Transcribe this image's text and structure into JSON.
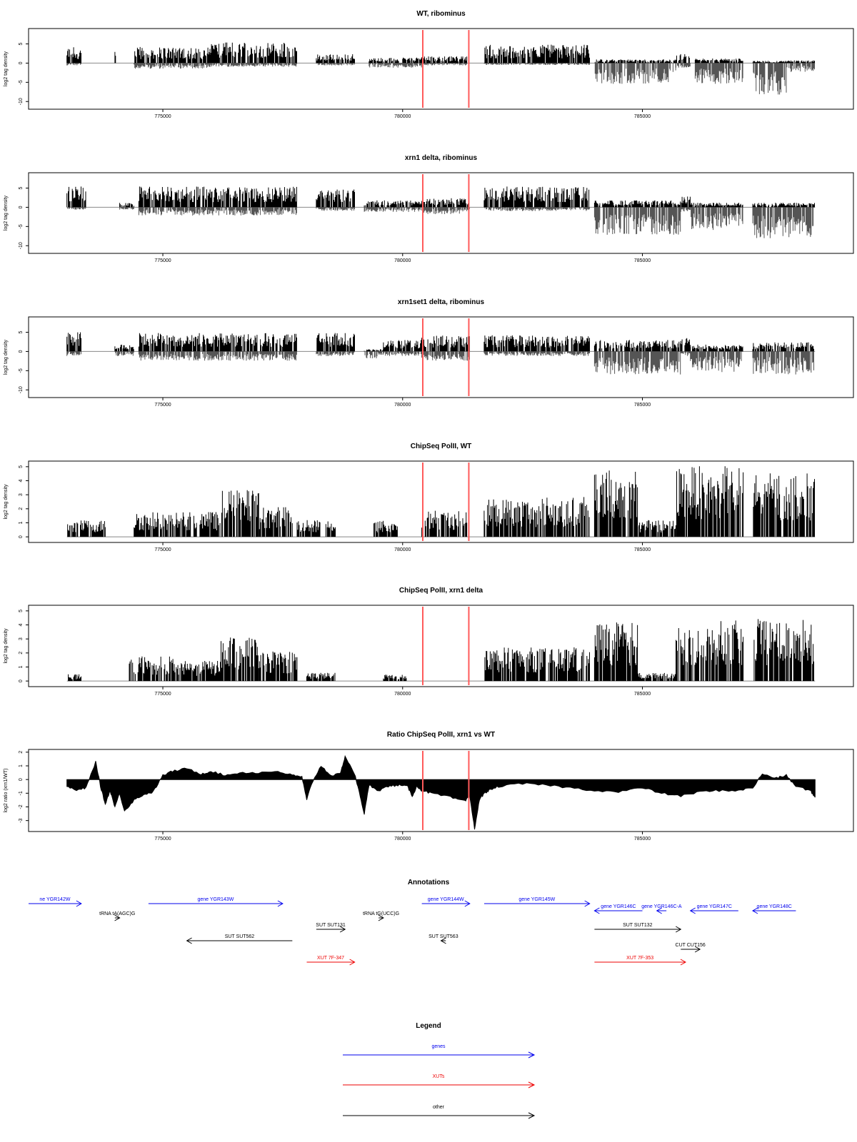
{
  "chart_data": [
    {
      "type": "bar",
      "id": "wt_ribominus",
      "title": "WT, ribominus",
      "ylabel": "log2 tag density",
      "xlim": [
        772200,
        789400
      ],
      "ylim": [
        -12,
        9
      ],
      "yticks": [
        -10,
        -5,
        0,
        5
      ],
      "xticks": [
        775000,
        780000,
        785000
      ],
      "vlines": [
        780420,
        781380
      ],
      "regions": [
        {
          "x0": 773000,
          "x1": 773300,
          "pos": 3.5,
          "neg": 0.5
        },
        {
          "x0": 774000,
          "x1": 774020,
          "pos": 2.5,
          "neg": 0
        },
        {
          "x0": 774400,
          "x1": 776000,
          "pos": 3.5,
          "neg": 1.2
        },
        {
          "x0": 776000,
          "x1": 777800,
          "pos": 4.5,
          "neg": 0.8
        },
        {
          "x0": 778200,
          "x1": 779000,
          "pos": 2.0,
          "neg": 0.5
        },
        {
          "x0": 779300,
          "x1": 780400,
          "pos": 1.2,
          "neg": 1.0
        },
        {
          "x0": 780400,
          "x1": 781350,
          "pos": 1.5,
          "neg": 0.5
        },
        {
          "x0": 781700,
          "x1": 783900,
          "pos": 4.0,
          "neg": 0.4
        },
        {
          "x0": 784000,
          "x1": 785700,
          "pos": 0.8,
          "neg": 4.5
        },
        {
          "x0": 785700,
          "x1": 786000,
          "pos": 2.0,
          "neg": 1.0
        },
        {
          "x0": 786100,
          "x1": 787100,
          "pos": 1.0,
          "neg": 4.5
        },
        {
          "x0": 787300,
          "x1": 788000,
          "pos": 0.5,
          "neg": 7.0
        },
        {
          "x0": 788000,
          "x1": 788600,
          "pos": 0.6,
          "neg": 2.0
        }
      ]
    },
    {
      "type": "bar",
      "id": "xrn1_ribominus",
      "title": "xrn1 delta, ribominus",
      "ylabel": "log2 tag density",
      "xlim": [
        772200,
        789400
      ],
      "ylim": [
        -12,
        9
      ],
      "yticks": [
        -10,
        -5,
        0,
        5
      ],
      "xticks": [
        775000,
        780000,
        785000
      ],
      "vlines": [
        780420,
        781380
      ],
      "regions": [
        {
          "x0": 773000,
          "x1": 773400,
          "pos": 4.5,
          "neg": 0.5
        },
        {
          "x0": 774100,
          "x1": 774400,
          "pos": 1.0,
          "neg": 0.5
        },
        {
          "x0": 774500,
          "x1": 777800,
          "pos": 4.5,
          "neg": 1.8
        },
        {
          "x0": 778200,
          "x1": 779000,
          "pos": 4.0,
          "neg": 0.8
        },
        {
          "x0": 779200,
          "x1": 780400,
          "pos": 1.5,
          "neg": 1.0
        },
        {
          "x0": 780400,
          "x1": 781400,
          "pos": 2.0,
          "neg": 1.5
        },
        {
          "x0": 781700,
          "x1": 783900,
          "pos": 4.5,
          "neg": 0.8
        },
        {
          "x0": 784000,
          "x1": 785800,
          "pos": 1.5,
          "neg": 6.0
        },
        {
          "x0": 785800,
          "x1": 786000,
          "pos": 2.5,
          "neg": 1.0
        },
        {
          "x0": 786000,
          "x1": 787100,
          "pos": 1.0,
          "neg": 5.0
        },
        {
          "x0": 787300,
          "x1": 788600,
          "pos": 1.0,
          "neg": 7.0
        }
      ]
    },
    {
      "type": "bar",
      "id": "xrn1set1_ribominus",
      "title": "xrn1set1 delta, ribominus",
      "ylabel": "log2 tag density",
      "xlim": [
        772200,
        789400
      ],
      "ylim": [
        -12,
        9
      ],
      "yticks": [
        -10,
        -5,
        0,
        5
      ],
      "xticks": [
        775000,
        780000,
        785000
      ],
      "vlines": [
        780420,
        781380
      ],
      "regions": [
        {
          "x0": 773000,
          "x1": 773300,
          "pos": 4.5,
          "neg": 1.0
        },
        {
          "x0": 774000,
          "x1": 774400,
          "pos": 1.5,
          "neg": 1.0
        },
        {
          "x0": 774500,
          "x1": 777800,
          "pos": 4.0,
          "neg": 2.0
        },
        {
          "x0": 778200,
          "x1": 779000,
          "pos": 4.0,
          "neg": 1.0
        },
        {
          "x0": 779200,
          "x1": 779600,
          "pos": 0.5,
          "neg": 1.5
        },
        {
          "x0": 779600,
          "x1": 780400,
          "pos": 2.5,
          "neg": 1.0
        },
        {
          "x0": 780400,
          "x1": 781400,
          "pos": 3.5,
          "neg": 2.0
        },
        {
          "x0": 781700,
          "x1": 783900,
          "pos": 3.5,
          "neg": 1.0
        },
        {
          "x0": 784000,
          "x1": 785800,
          "pos": 2.5,
          "neg": 5.0
        },
        {
          "x0": 785800,
          "x1": 786000,
          "pos": 3.0,
          "neg": 1.0
        },
        {
          "x0": 786000,
          "x1": 787100,
          "pos": 1.5,
          "neg": 4.5
        },
        {
          "x0": 787300,
          "x1": 788600,
          "pos": 2.0,
          "neg": 5.0
        }
      ]
    },
    {
      "type": "bar",
      "id": "chipseq_wt",
      "title": "ChipSeq PolII, WT",
      "ylabel": "log2 tag density",
      "xlim": [
        772200,
        789400
      ],
      "ylim": [
        -0.4,
        5.4
      ],
      "yticks": [
        0,
        1,
        2,
        3,
        4,
        5
      ],
      "xticks": [
        775000,
        780000,
        785000
      ],
      "vlines": [
        780420,
        781380
      ],
      "regions": [
        {
          "x0": 773000,
          "x1": 773800,
          "pos": 1.0,
          "neg": 0
        },
        {
          "x0": 774400,
          "x1": 776200,
          "pos": 1.5,
          "neg": 0
        },
        {
          "x0": 776200,
          "x1": 777000,
          "pos": 2.8,
          "neg": 0
        },
        {
          "x0": 777000,
          "x1": 777700,
          "pos": 1.8,
          "neg": 0
        },
        {
          "x0": 777800,
          "x1": 778300,
          "pos": 1.0,
          "neg": 0
        },
        {
          "x0": 778400,
          "x1": 778600,
          "pos": 1.0,
          "neg": 0
        },
        {
          "x0": 779400,
          "x1": 779900,
          "pos": 1.0,
          "neg": 0
        },
        {
          "x0": 780400,
          "x1": 781350,
          "pos": 1.6,
          "neg": 0
        },
        {
          "x0": 781700,
          "x1": 782800,
          "pos": 2.3,
          "neg": 0
        },
        {
          "x0": 782800,
          "x1": 783900,
          "pos": 2.4,
          "neg": 0
        },
        {
          "x0": 784000,
          "x1": 784900,
          "pos": 4.0,
          "neg": 0
        },
        {
          "x0": 784900,
          "x1": 785700,
          "pos": 1.0,
          "neg": 0
        },
        {
          "x0": 785700,
          "x1": 787100,
          "pos": 4.2,
          "neg": 0
        },
        {
          "x0": 787300,
          "x1": 788600,
          "pos": 3.8,
          "neg": 0
        }
      ]
    },
    {
      "type": "bar",
      "id": "chipseq_xrn1",
      "title": "ChipSeq PolII, xrn1 delta",
      "ylabel": "log2 tag density",
      "xlim": [
        772200,
        789400
      ],
      "ylim": [
        -0.4,
        5.4
      ],
      "yticks": [
        0,
        1,
        2,
        3,
        4,
        5
      ],
      "xticks": [
        775000,
        780000,
        785000
      ],
      "vlines": [
        780420,
        781380
      ],
      "regions": [
        {
          "x0": 773000,
          "x1": 773300,
          "pos": 0.4,
          "neg": 0
        },
        {
          "x0": 774300,
          "x1": 775300,
          "pos": 1.5,
          "neg": 0
        },
        {
          "x0": 775300,
          "x1": 776200,
          "pos": 1.2,
          "neg": 0
        },
        {
          "x0": 776200,
          "x1": 777000,
          "pos": 2.6,
          "neg": 0
        },
        {
          "x0": 777000,
          "x1": 777800,
          "pos": 1.8,
          "neg": 0
        },
        {
          "x0": 778000,
          "x1": 778600,
          "pos": 0.5,
          "neg": 0
        },
        {
          "x0": 779600,
          "x1": 780100,
          "pos": 0.4,
          "neg": 0
        },
        {
          "x0": 781700,
          "x1": 783100,
          "pos": 2.0,
          "neg": 0
        },
        {
          "x0": 783100,
          "x1": 783900,
          "pos": 2.0,
          "neg": 0
        },
        {
          "x0": 784000,
          "x1": 784900,
          "pos": 3.5,
          "neg": 0
        },
        {
          "x0": 784900,
          "x1": 785700,
          "pos": 0.5,
          "neg": 0
        },
        {
          "x0": 785700,
          "x1": 787100,
          "pos": 3.6,
          "neg": 0
        },
        {
          "x0": 787300,
          "x1": 788600,
          "pos": 3.7,
          "neg": 0
        }
      ]
    },
    {
      "type": "area",
      "id": "ratio",
      "title": "Ratio ChipSeq PolII, xrn1 vs WT",
      "ylabel": "log2 ratio (xrn1/WT)",
      "xlim": [
        772200,
        789400
      ],
      "ylim": [
        -3.8,
        2.2
      ],
      "yticks": [
        -3,
        -2,
        -1,
        0,
        1,
        2
      ],
      "xticks": [
        775000,
        780000,
        785000
      ],
      "vlines": [
        780420,
        781380
      ],
      "x": [
        773000,
        773200,
        773400,
        773600,
        773700,
        773800,
        773900,
        774000,
        774100,
        774200,
        774400,
        774600,
        774800,
        775000,
        775200,
        775500,
        775800,
        776000,
        776300,
        776600,
        777000,
        777400,
        777700,
        777900,
        778000,
        778100,
        778300,
        778500,
        778700,
        778800,
        779000,
        779100,
        779200,
        779300,
        779500,
        779700,
        779900,
        780100,
        780200,
        780300,
        780400,
        780600,
        781000,
        781300,
        781400,
        781500,
        781600,
        781700,
        781800,
        782000,
        782500,
        783000,
        783500,
        784000,
        784500,
        785000,
        785400,
        785800,
        786200,
        786600,
        787000,
        787300,
        787500,
        787800,
        788000,
        788200,
        788500,
        788600
      ],
      "y": [
        -0.5,
        -0.8,
        -0.6,
        1.3,
        -0.5,
        -1.8,
        -0.8,
        -2.0,
        -1.0,
        -2.3,
        -1.5,
        -1.1,
        -0.9,
        0.3,
        0.6,
        0.8,
        0.4,
        0.6,
        0.3,
        0.5,
        0.5,
        0.6,
        0.3,
        0.2,
        -1.5,
        -0.3,
        1.0,
        0.3,
        0.4,
        1.7,
        0.4,
        -1.0,
        -2.5,
        -0.4,
        -0.8,
        -0.5,
        -0.4,
        -0.5,
        -1.2,
        -0.5,
        -0.8,
        -1.0,
        -1.3,
        -1.6,
        -1.2,
        -3.6,
        -1.5,
        -1.0,
        -0.8,
        -0.5,
        -0.3,
        -0.4,
        -0.6,
        -0.8,
        -0.9,
        -0.6,
        -1.0,
        -1.2,
        -0.9,
        -0.8,
        -0.8,
        -0.6,
        0.4,
        0.1,
        0.3,
        -0.5,
        -0.8,
        -1.3
      ]
    }
  ],
  "annotations": {
    "title": "Annotations",
    "items": [
      {
        "label": "ne YGR142W",
        "color": "#0000ee",
        "x0": 772200,
        "x1": 773300,
        "row": 0,
        "dir": "right"
      },
      {
        "label": "gene YGR143W",
        "color": "#0000ee",
        "x0": 774700,
        "x1": 777500,
        "row": 0,
        "dir": "right"
      },
      {
        "label": "gene YGR144W",
        "color": "#0000ee",
        "x0": 780400,
        "x1": 781400,
        "row": 0,
        "dir": "right"
      },
      {
        "label": "gene YGR145W",
        "color": "#0000ee",
        "x0": 781700,
        "x1": 783900,
        "row": 0,
        "dir": "right"
      },
      {
        "label": "gene YGR146C",
        "color": "#0000ee",
        "x0": 784000,
        "x1": 785000,
        "row": 1,
        "dir": "left"
      },
      {
        "label": "gene YGR146C-A",
        "color": "#0000ee",
        "x0": 785300,
        "x1": 785500,
        "row": 1,
        "dir": "left"
      },
      {
        "label": "gene YGR147C",
        "color": "#0000ee",
        "x0": 786000,
        "x1": 787000,
        "row": 1,
        "dir": "left"
      },
      {
        "label": "gene YGR148C",
        "color": "#0000ee",
        "x0": 787300,
        "x1": 788200,
        "row": 1,
        "dir": "left"
      },
      {
        "label": "tRNA tA(AGC)G",
        "color": "#000000",
        "x0": 774000,
        "x1": 774100,
        "row": 2,
        "dir": "right"
      },
      {
        "label": "tRNA tG(UCC)G",
        "color": "#000000",
        "x0": 779500,
        "x1": 779600,
        "row": 2,
        "dir": "right"
      },
      {
        "label": "SUT SUT131",
        "color": "#000000",
        "x0": 778200,
        "x1": 778800,
        "row": 3,
        "dir": "right"
      },
      {
        "label": "SUT SUT132",
        "color": "#000000",
        "x0": 784000,
        "x1": 785800,
        "row": 3,
        "dir": "right"
      },
      {
        "label": "SUT SUT562",
        "color": "#000000",
        "x0": 775500,
        "x1": 777700,
        "row": 4,
        "dir": "left"
      },
      {
        "label": "SUT SUT563",
        "color": "#000000",
        "x0": 780800,
        "x1": 780900,
        "row": 4,
        "dir": "left"
      },
      {
        "label": "CUT CUT156",
        "color": "#000000",
        "x0": 785800,
        "x1": 786200,
        "row": 5,
        "dir": "right"
      },
      {
        "label": "XUT 7F-347",
        "color": "#ee0000",
        "x0": 778000,
        "x1": 779000,
        "row": 6,
        "dir": "right"
      },
      {
        "label": "XUT 7F-353",
        "color": "#ee0000",
        "x0": 784000,
        "x1": 785900,
        "row": 6,
        "dir": "right"
      }
    ]
  },
  "legend": {
    "title": "Legend",
    "items": [
      {
        "label": "genes",
        "color": "#0000ee"
      },
      {
        "label": "XUTs",
        "color": "#ee0000"
      },
      {
        "label": "other",
        "color": "#000000"
      }
    ]
  }
}
